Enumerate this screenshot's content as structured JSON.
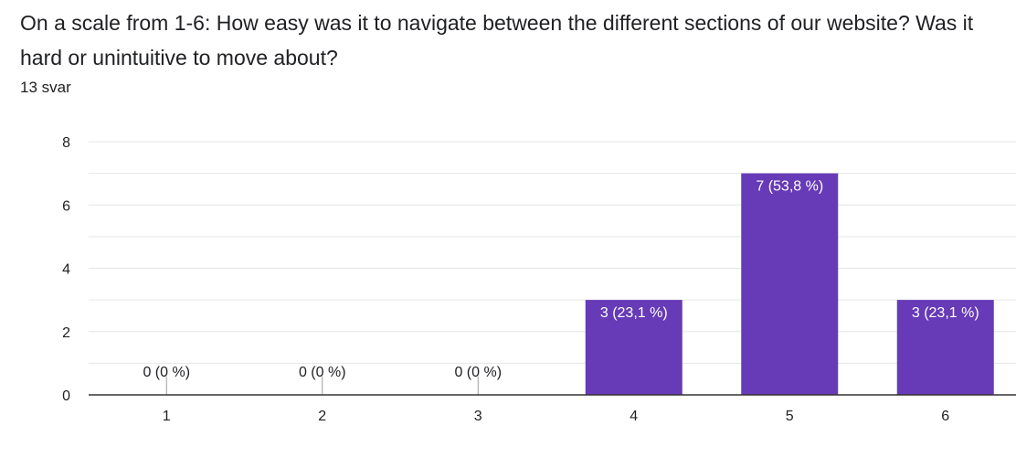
{
  "question": {
    "title": "On a scale from 1-6: How easy was it to navigate between the different sections of our website?   Was it hard or unintuitive to move about?",
    "response_count": "13 svar"
  },
  "colors": {
    "bar": "#673ab7",
    "grid": "#e6e6e6",
    "axis": "#333333",
    "text": "#202124",
    "bar_label": "#ffffff"
  },
  "chart_data": {
    "type": "bar",
    "title": "",
    "xlabel": "",
    "ylabel": "",
    "categories": [
      "1",
      "2",
      "3",
      "4",
      "5",
      "6"
    ],
    "values": [
      0,
      0,
      0,
      3,
      7,
      3
    ],
    "data_labels": [
      "0 (0 %)",
      "0 (0 %)",
      "0 (0 %)",
      "3 (23,1 %)",
      "7 (53,8 %)",
      "3 (23,1 %)"
    ],
    "ylim": [
      0,
      8
    ],
    "yticks": [
      0,
      2,
      4,
      6,
      8
    ],
    "minor_grid_step": 1,
    "grid": true,
    "legend": "none"
  }
}
